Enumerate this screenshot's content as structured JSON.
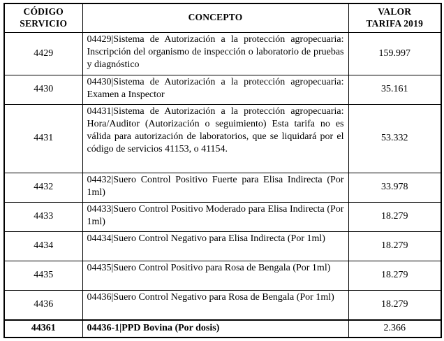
{
  "table": {
    "headers": [
      {
        "line1": "CÓDIGO",
        "line2": "SERVICIO"
      },
      {
        "line1": "CONCEPTO",
        "line2": ""
      },
      {
        "line1": "VALOR",
        "line2": "TARIFA 2019"
      }
    ],
    "rows": [
      {
        "code": "4429",
        "concept": "04429|Sistema de Autorización a la protección agropecuaria: Inscripción del organismo de inspección o laboratorio de pruebas y diagnóstico",
        "value": "159.997"
      },
      {
        "code": "4430",
        "concept": "04430|Sistema de Autorización a la protección agropecuaria: Examen a Inspector",
        "value": "35.161"
      },
      {
        "code": "4431",
        "concept": "04431|Sistema de Autorización a la protección agropecuaria: Hora/Auditor (Autorización o seguimiento) Esta tarifa no es válida para autorización de laboratorios, que se liquidará por el código de servicios 41153, o 41154.",
        "value": "53.332"
      },
      {
        "code": "4432",
        "concept": "04432|Suero Control Positivo Fuerte para Elisa Indirecta (Por 1ml)",
        "value": "33.978"
      },
      {
        "code": "4433",
        "concept": "04433|Suero Control Positivo Moderado para Elisa Indirecta (Por 1ml)",
        "value": "18.279"
      },
      {
        "code": "4434",
        "concept": "04434|Suero Control Negativo para Elisa Indirecta (Por 1ml)",
        "value": "18.279"
      },
      {
        "code": "4435",
        "concept": "04435|Suero Control Positivo para Rosa de Bengala (Por 1ml)",
        "value": "18.279"
      },
      {
        "code": "4436",
        "concept": "04436|Suero Control Negativo para Rosa de Bengala (Por 1ml)",
        "value": "18.279"
      },
      {
        "code": "44361",
        "concept": "04436-1|PPD Bovina (Por dosis)",
        "value": "2.366"
      }
    ]
  }
}
